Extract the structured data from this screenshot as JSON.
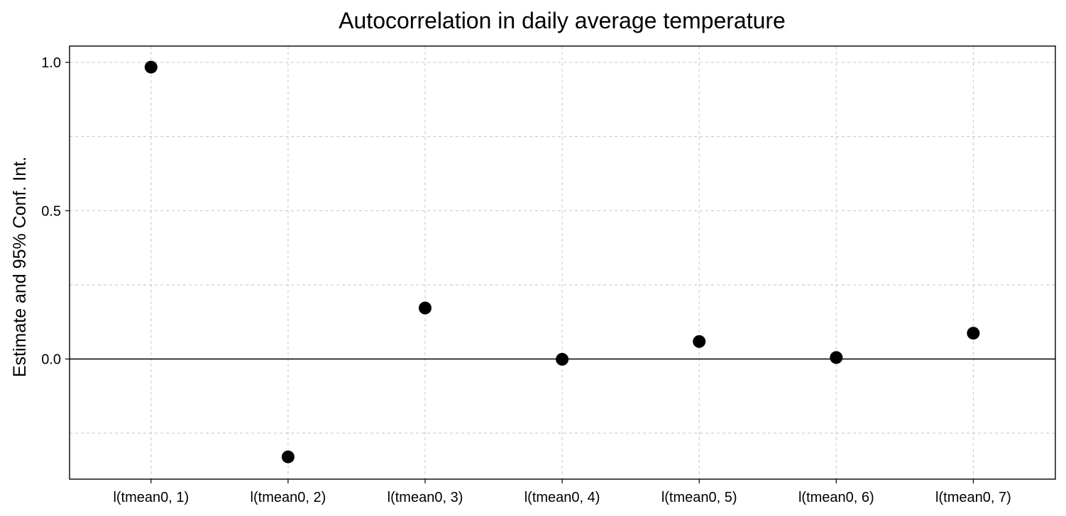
{
  "chart_data": {
    "type": "scatter",
    "title": "Autocorrelation in daily average temperature",
    "xlabel": "",
    "ylabel": "Estimate and 95% Conf. Int.",
    "categories": [
      "l(tmean0, 1)",
      "l(tmean0, 2)",
      "l(tmean0, 3)",
      "l(tmean0, 4)",
      "l(tmean0, 5)",
      "l(tmean0, 6)",
      "l(tmean0, 7)"
    ],
    "series": [
      {
        "values": [
          0.984,
          -0.33,
          0.172,
          -0.001,
          0.059,
          0.005,
          0.087
        ]
      }
    ],
    "ylim": [
      -0.405,
      1.055
    ],
    "yticks": [
      0.0,
      0.5,
      1.0
    ],
    "ytick_labels": [
      "0.0",
      "0.5",
      "1.0"
    ],
    "minor_grid_y": [
      -0.25,
      0.25,
      0.75
    ],
    "reference_line_y": 0,
    "grid": true,
    "legend": "none",
    "colors": {
      "point": "#000000",
      "grid": "#cfcfcf",
      "frame": "#000000"
    }
  }
}
